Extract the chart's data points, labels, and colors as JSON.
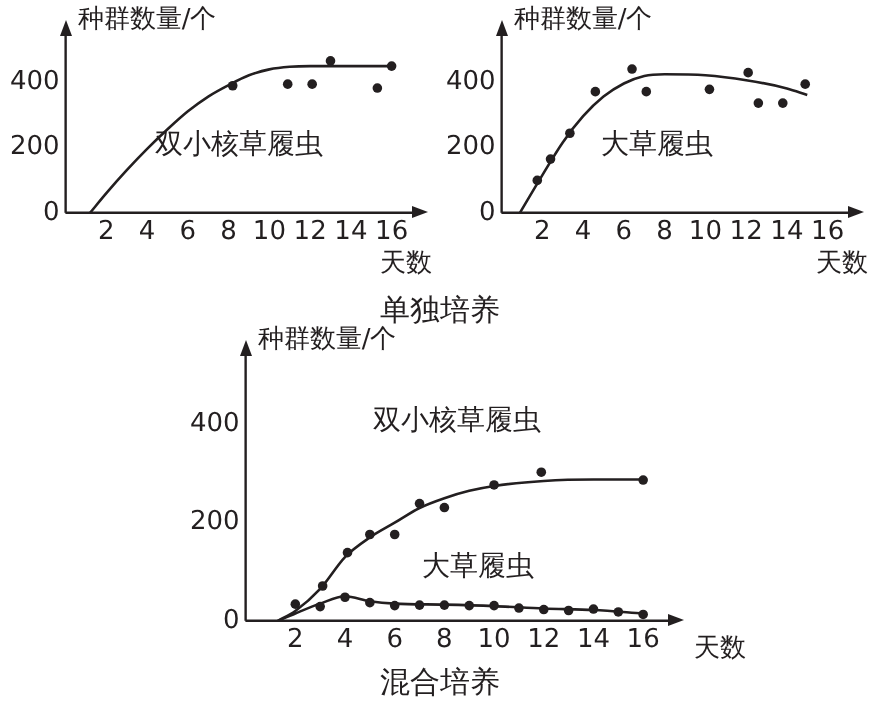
{
  "chart_data": [
    {
      "type": "line",
      "ylabel": "种群数量/个",
      "xlabel": "天数",
      "xlim": [
        0,
        17
      ],
      "ylim": [
        0,
        540
      ],
      "xticks": [
        2,
        4,
        6,
        8,
        10,
        12,
        14,
        16
      ],
      "yticks": [
        0,
        200,
        400
      ],
      "grid": false,
      "legend": false,
      "annotations": [
        "单独培养"
      ],
      "series": [
        {
          "name": "双小核草履虫",
          "color": "#231f20",
          "marker": "none",
          "x": [
            1.2,
            2,
            3,
            4,
            5,
            6,
            7,
            8,
            9,
            10,
            11,
            12,
            16
          ],
          "values": [
            0,
            60,
            130,
            195,
            255,
            310,
            355,
            390,
            420,
            438,
            446,
            448,
            448
          ]
        },
        {
          "type": "scatter",
          "color": "#231f20",
          "marker": "circle",
          "x": [
            8.2,
            10.9,
            12.1,
            13,
            15.3,
            16
          ],
          "values": [
            388,
            393,
            393,
            464,
            381,
            448
          ]
        }
      ]
    },
    {
      "type": "line",
      "ylabel": "种群数量/个",
      "xlabel": "天数",
      "xlim": [
        0,
        17
      ],
      "ylim": [
        0,
        540
      ],
      "xticks": [
        2,
        4,
        6,
        8,
        10,
        12,
        14,
        16
      ],
      "yticks": [
        0,
        200,
        400
      ],
      "grid": false,
      "legend": false,
      "series": [
        {
          "name": "大草履虫",
          "color": "#231f20",
          "marker": "none",
          "x": [
            0.9,
            2,
            3,
            4,
            5,
            6,
            7,
            8,
            10,
            12,
            14,
            15
          ],
          "values": [
            0,
            115,
            215,
            295,
            355,
            395,
            418,
            423,
            420,
            405,
            380,
            360
          ]
        },
        {
          "type": "scatter",
          "color": "#231f20",
          "marker": "circle",
          "x": [
            1.75,
            2.4,
            3.35,
            4.6,
            6.4,
            7.1,
            10.2,
            12.1,
            12.6,
            13.8,
            14.9
          ],
          "values": [
            99,
            164,
            243,
            370,
            439,
            370,
            377,
            428,
            335,
            335,
            393
          ]
        }
      ]
    },
    {
      "type": "line",
      "ylabel": "种群数量/个",
      "xlabel": "天数",
      "xlim": [
        0,
        17
      ],
      "ylim": [
        0,
        540
      ],
      "xticks": [
        2,
        4,
        6,
        8,
        10,
        12,
        14,
        16
      ],
      "yticks": [
        0,
        200,
        400
      ],
      "grid": false,
      "legend": false,
      "annotations": [
        "混合培养"
      ],
      "series": [
        {
          "name": "双小核草履虫",
          "color": "#231f20",
          "marker": "none",
          "x": [
            1.3,
            2,
            3,
            4,
            5,
            6,
            7,
            8,
            9,
            10,
            12,
            14,
            16
          ],
          "values": [
            0,
            20,
            65,
            130,
            170,
            200,
            230,
            250,
            265,
            275,
            285,
            288,
            288
          ]
        },
        {
          "type": "scatter",
          "color": "#231f20",
          "marker": "circle",
          "x": [
            2,
            3.1,
            4.1,
            5,
            6,
            7,
            8,
            10,
            11.9,
            16
          ],
          "values": [
            34,
            71,
            139,
            176,
            176,
            239,
            231,
            277,
            303,
            287
          ]
        },
        {
          "name": "大草履虫",
          "color": "#231f20",
          "marker": "none",
          "x": [
            1.3,
            2,
            3,
            4,
            5,
            6,
            8,
            10,
            12,
            14,
            16
          ],
          "values": [
            0,
            15,
            35,
            50,
            40,
            35,
            33,
            30,
            25,
            22,
            15
          ]
        },
        {
          "type": "scatter",
          "color": "#231f20",
          "marker": "circle",
          "x": [
            3,
            4,
            5,
            6,
            7,
            8,
            9,
            10,
            11,
            12,
            13,
            14,
            15,
            16
          ],
          "values": [
            29,
            48,
            37,
            31,
            32,
            32,
            31,
            31,
            26,
            23,
            21,
            24,
            18,
            13
          ]
        }
      ]
    }
  ]
}
